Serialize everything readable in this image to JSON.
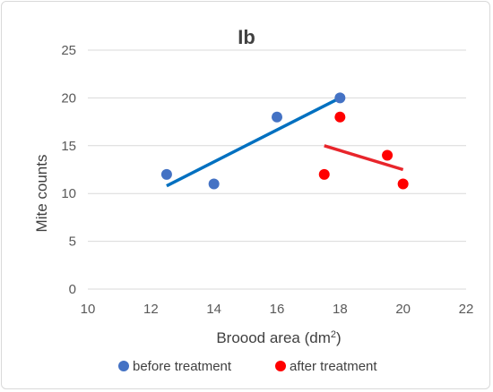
{
  "chart_data": {
    "type": "scatter",
    "title": "Ib",
    "xlabel": "Broood area (dm",
    "xlabel_superscript": "2",
    "xlabel_suffix": ")",
    "ylabel": "Mite counts",
    "xlim": [
      10,
      22
    ],
    "ylim": [
      0,
      25
    ],
    "x_ticks": [
      "10",
      "12",
      "14",
      "16",
      "18",
      "20",
      "22"
    ],
    "y_ticks": [
      "0",
      "5",
      "10",
      "15",
      "20",
      "25"
    ],
    "grid": "horizontal",
    "legend_position": "bottom",
    "series": [
      {
        "name": "before treatment",
        "color": "#4472C4",
        "trendline_color": "#0070C0",
        "points": [
          {
            "x": 12.5,
            "y": 12
          },
          {
            "x": 14,
            "y": 11
          },
          {
            "x": 16,
            "y": 18
          },
          {
            "x": 18,
            "y": 20
          }
        ],
        "trendline": {
          "x": [
            12.5,
            18
          ],
          "y": [
            10.8,
            20
          ]
        }
      },
      {
        "name": "after treatment",
        "color": "#FF0000",
        "trendline_color": "#E8252B",
        "points": [
          {
            "x": 17.5,
            "y": 12
          },
          {
            "x": 18,
            "y": 18
          },
          {
            "x": 19.5,
            "y": 14
          },
          {
            "x": 20,
            "y": 11
          }
        ],
        "trendline": {
          "x": [
            17.5,
            20
          ],
          "y": [
            15.0,
            12.5
          ]
        }
      }
    ]
  }
}
